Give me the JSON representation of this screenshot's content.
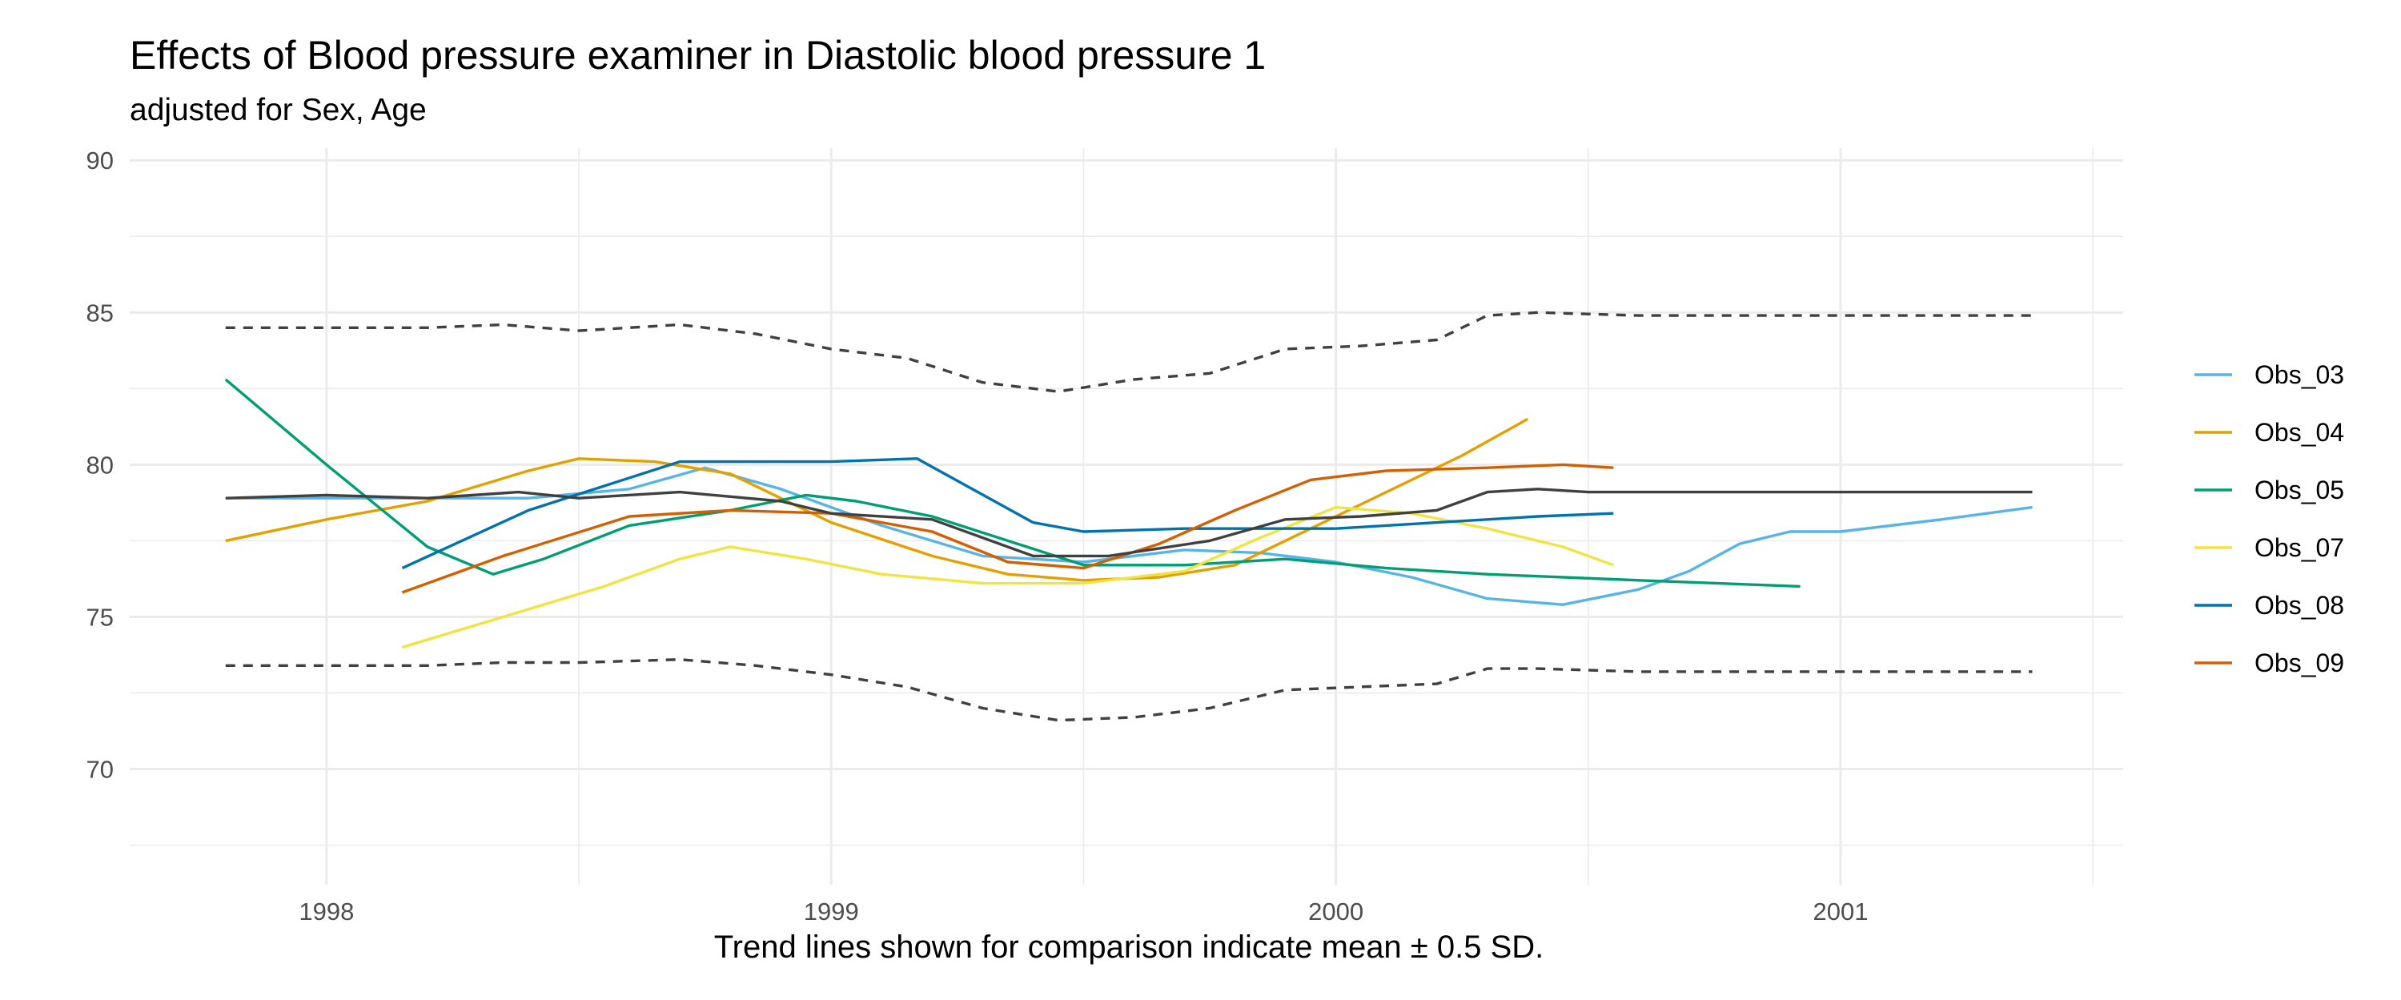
{
  "chart_data": {
    "type": "line",
    "title": "Effects of Blood pressure examiner in Diastolic blood pressure 1",
    "subtitle": "adjusted for Sex, Age",
    "caption": "Trend lines shown for comparison indicate mean ± 0.5 SD.",
    "xlabel": "",
    "ylabel": "",
    "xlim": [
      1997.61,
      2001.56
    ],
    "ylim": [
      66.2,
      90.4
    ],
    "x_ticks": [
      1998,
      1999,
      2000,
      2001
    ],
    "x_tick_labels": [
      "1998",
      "1999",
      "2000",
      "2001"
    ],
    "y_ticks": [
      70,
      75,
      80,
      85,
      90
    ],
    "y_tick_labels": [
      "70",
      "75",
      "80",
      "85",
      "90"
    ],
    "grid": true,
    "legend_position": "right",
    "series": [
      {
        "name": "Obs_03",
        "color": "#56B4E9",
        "x": [
          1997.8,
          1998.0,
          1998.2,
          1998.4,
          1998.6,
          1998.75,
          1998.9,
          1999.1,
          1999.3,
          1999.5,
          1999.7,
          1999.85,
          2000.0,
          2000.15,
          2000.3,
          2000.45,
          2000.6,
          2000.7,
          2000.8,
          2000.9,
          2001.0,
          2001.2,
          2001.38
        ],
        "y": [
          78.9,
          78.9,
          78.9,
          78.9,
          79.2,
          79.9,
          79.2,
          78.0,
          77.0,
          76.8,
          77.2,
          77.1,
          76.8,
          76.3,
          75.6,
          75.4,
          75.9,
          76.5,
          77.4,
          77.8,
          77.8,
          78.2,
          78.6
        ]
      },
      {
        "name": "Obs_04",
        "color": "#E69F00",
        "x": [
          1997.8,
          1998.0,
          1998.2,
          1998.4,
          1998.5,
          1998.65,
          1998.8,
          1999.0,
          1999.2,
          1999.35,
          1999.5,
          1999.65,
          1999.8,
          1999.95,
          2000.1,
          2000.25,
          2000.38
        ],
        "y": [
          77.5,
          78.2,
          78.8,
          79.8,
          80.2,
          80.1,
          79.7,
          78.1,
          77.0,
          76.4,
          76.2,
          76.3,
          76.7,
          77.9,
          79.1,
          80.3,
          81.5
        ]
      },
      {
        "name": "Obs_05",
        "color": "#009E73",
        "x": [
          1997.8,
          1998.0,
          1998.2,
          1998.33,
          1998.43,
          1998.6,
          1998.8,
          1998.95,
          1999.05,
          1999.2,
          1999.35,
          1999.5,
          1999.7,
          1999.9,
          2000.1,
          2000.3,
          2000.6,
          2000.92
        ],
        "y": [
          82.8,
          80.0,
          77.3,
          76.4,
          76.9,
          78.0,
          78.5,
          79.0,
          78.8,
          78.3,
          77.5,
          76.7,
          76.7,
          76.9,
          76.6,
          76.4,
          76.2,
          76.0
        ]
      },
      {
        "name": "Obs_07",
        "color": "#F0E442",
        "x": [
          1998.15,
          1998.35,
          1998.55,
          1998.7,
          1998.8,
          1998.95,
          1999.1,
          1999.3,
          1999.5,
          1999.7,
          1999.85,
          2000.0,
          2000.15,
          2000.3,
          2000.45,
          2000.55
        ],
        "y": [
          74.0,
          75.0,
          76.0,
          76.9,
          77.3,
          76.9,
          76.4,
          76.1,
          76.1,
          76.5,
          77.6,
          78.6,
          78.4,
          77.9,
          77.3,
          76.7
        ]
      },
      {
        "name": "Obs_08",
        "color": "#0072B2",
        "x": [
          1998.15,
          1998.4,
          1998.7,
          1999.0,
          1999.17,
          1999.4,
          1999.5,
          1999.7,
          2000.0,
          2000.2,
          2000.4,
          2000.55
        ],
        "y": [
          76.6,
          78.5,
          80.1,
          80.1,
          80.2,
          78.1,
          77.8,
          77.9,
          77.9,
          78.1,
          78.3,
          78.4
        ]
      },
      {
        "name": "Obs_09",
        "color": "#D55E00",
        "x": [
          1998.15,
          1998.35,
          1998.6,
          1998.8,
          1999.0,
          1999.2,
          1999.35,
          1999.5,
          1999.65,
          1999.8,
          1999.95,
          2000.1,
          2000.3,
          2000.45,
          2000.55
        ],
        "y": [
          75.8,
          77.0,
          78.3,
          78.5,
          78.4,
          77.8,
          76.8,
          76.6,
          77.4,
          78.5,
          79.5,
          79.8,
          79.9,
          80.0,
          79.9
        ]
      },
      {
        "name": "mean",
        "color": "#404040",
        "legend": false,
        "x": [
          1997.8,
          1998.0,
          1998.2,
          1998.38,
          1998.5,
          1998.7,
          1998.9,
          1999.0,
          1999.2,
          1999.4,
          1999.55,
          1999.75,
          1999.9,
          2000.05,
          2000.2,
          2000.3,
          2000.4,
          2000.5,
          2000.8,
          2001.0,
          2001.2,
          2001.38
        ],
        "y": [
          78.9,
          79.0,
          78.9,
          79.1,
          78.9,
          79.1,
          78.8,
          78.4,
          78.2,
          77.0,
          77.0,
          77.5,
          78.2,
          78.3,
          78.5,
          79.1,
          79.2,
          79.1,
          79.1,
          79.1,
          79.1,
          79.1
        ]
      },
      {
        "name": "mean + 0.5 SD",
        "color": "#404040",
        "dashed": true,
        "legend": false,
        "x": [
          1997.8,
          1998.0,
          1998.2,
          1998.35,
          1998.5,
          1998.7,
          1998.85,
          1999.0,
          1999.15,
          1999.3,
          1999.45,
          1999.6,
          1999.75,
          1999.9,
          2000.05,
          2000.2,
          2000.3,
          2000.4,
          2000.6,
          2000.8,
          2001.0,
          2001.2,
          2001.38
        ],
        "y": [
          84.5,
          84.5,
          84.5,
          84.6,
          84.4,
          84.6,
          84.3,
          83.8,
          83.5,
          82.7,
          82.4,
          82.8,
          83.0,
          83.8,
          83.9,
          84.1,
          84.9,
          85.0,
          84.9,
          84.9,
          84.9,
          84.9,
          84.9
        ]
      },
      {
        "name": "mean - 0.5 SD",
        "color": "#404040",
        "dashed": true,
        "legend": false,
        "x": [
          1997.8,
          1998.0,
          1998.2,
          1998.35,
          1998.5,
          1998.7,
          1998.85,
          1999.0,
          1999.15,
          1999.3,
          1999.45,
          1999.6,
          1999.75,
          1999.9,
          2000.05,
          2000.2,
          2000.3,
          2000.4,
          2000.6,
          2000.8,
          2001.0,
          2001.2,
          2001.38
        ],
        "y": [
          73.4,
          73.4,
          73.4,
          73.5,
          73.5,
          73.6,
          73.4,
          73.1,
          72.7,
          72.0,
          71.6,
          71.7,
          72.0,
          72.6,
          72.7,
          72.8,
          73.3,
          73.3,
          73.2,
          73.2,
          73.2,
          73.2,
          73.2
        ]
      }
    ]
  }
}
